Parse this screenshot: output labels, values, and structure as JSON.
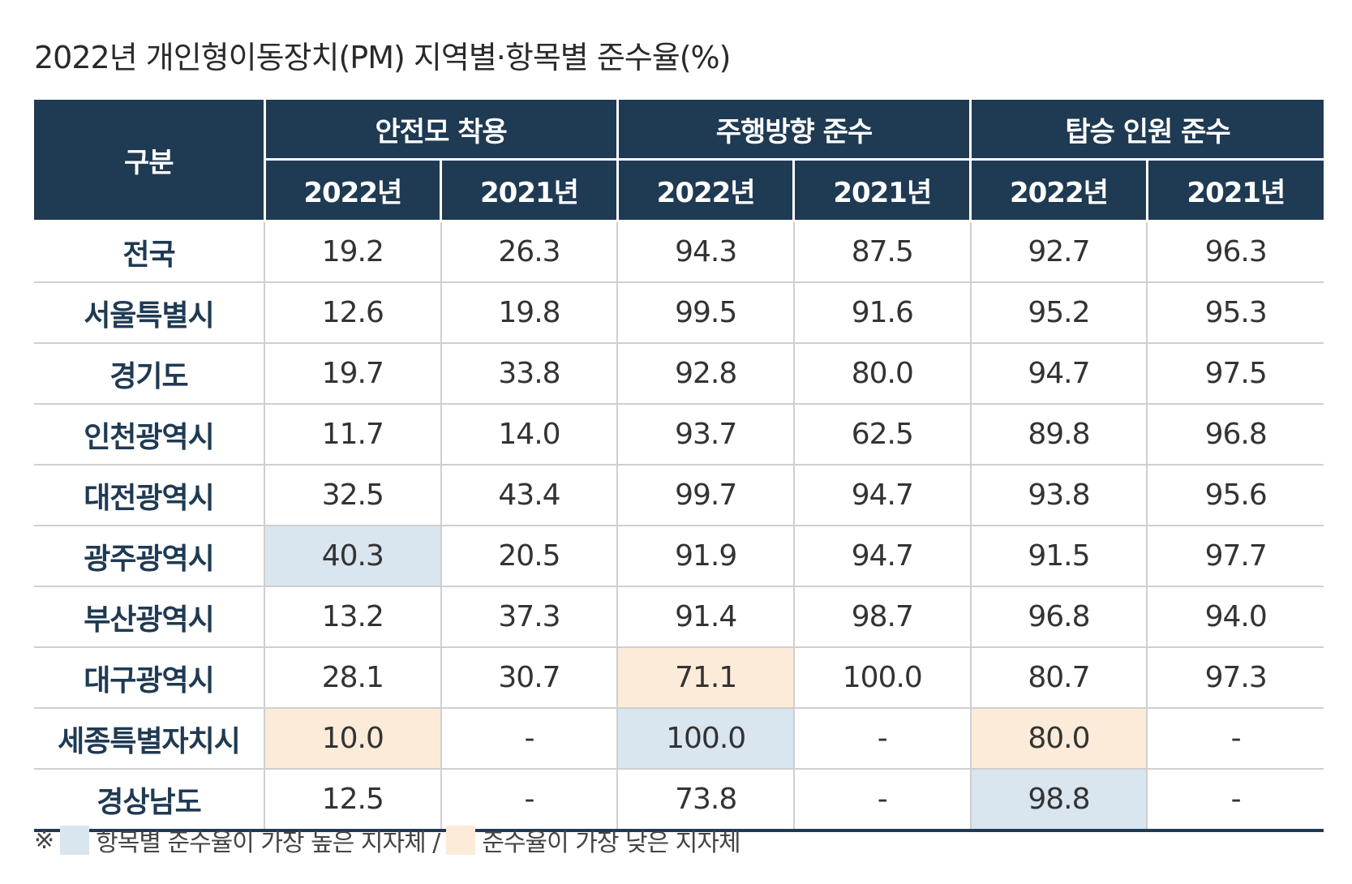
{
  "title": "2022년 개인형이동장치(PM) 지역별·항목별 준수율(%)",
  "header": {
    "category": "구분",
    "groups": [
      "안전모 착용",
      "주행방향 준수",
      "탑승 인원 준수"
    ],
    "years": [
      "2022년",
      "2021년",
      "2022년",
      "2021년",
      "2022년",
      "2021년"
    ]
  },
  "rows": [
    {
      "region": "전국",
      "values": [
        "19.2",
        "26.3",
        "94.3",
        "87.5",
        "92.7",
        "96.3"
      ],
      "marks": [
        "",
        "",
        "",
        "",
        "",
        ""
      ]
    },
    {
      "region": "서울특별시",
      "values": [
        "12.6",
        "19.8",
        "99.5",
        "91.6",
        "95.2",
        "95.3"
      ],
      "marks": [
        "",
        "",
        "",
        "",
        "",
        ""
      ]
    },
    {
      "region": "경기도",
      "values": [
        "19.7",
        "33.8",
        "92.8",
        "80.0",
        "94.7",
        "97.5"
      ],
      "marks": [
        "",
        "",
        "",
        "",
        "",
        ""
      ]
    },
    {
      "region": "인천광역시",
      "values": [
        "11.7",
        "14.0",
        "93.7",
        "62.5",
        "89.8",
        "96.8"
      ],
      "marks": [
        "",
        "",
        "",
        "",
        "",
        ""
      ]
    },
    {
      "region": "대전광역시",
      "values": [
        "32.5",
        "43.4",
        "99.7",
        "94.7",
        "93.8",
        "95.6"
      ],
      "marks": [
        "",
        "",
        "",
        "",
        "",
        ""
      ]
    },
    {
      "region": "광주광역시",
      "values": [
        "40.3",
        "20.5",
        "91.9",
        "94.7",
        "91.5",
        "97.7"
      ],
      "marks": [
        "hi",
        "",
        "",
        "",
        "",
        ""
      ]
    },
    {
      "region": "부산광역시",
      "values": [
        "13.2",
        "37.3",
        "91.4",
        "98.7",
        "96.8",
        "94.0"
      ],
      "marks": [
        "",
        "",
        "",
        "",
        "",
        ""
      ]
    },
    {
      "region": "대구광역시",
      "values": [
        "28.1",
        "30.7",
        "71.1",
        "100.0",
        "80.7",
        "97.3"
      ],
      "marks": [
        "",
        "",
        "lo",
        "",
        "",
        ""
      ]
    },
    {
      "region": "세종특별자치시",
      "values": [
        "10.0",
        "-",
        "100.0",
        "-",
        "80.0",
        "-"
      ],
      "marks": [
        "lo",
        "",
        "hi",
        "",
        "lo",
        ""
      ]
    },
    {
      "region": "경상남도",
      "values": [
        "12.5",
        "-",
        "73.8",
        "-",
        "98.8",
        "-"
      ],
      "marks": [
        "",
        "",
        "",
        "",
        "hi",
        ""
      ]
    }
  ],
  "legend": {
    "prefix": "※",
    "high_label": "항목별 준수율이 가장 높은 지자체 /",
    "low_label": "준수율이 가장 낮은 지자체"
  },
  "colors": {
    "header": "#1f3a53",
    "high": "#d9e5ef",
    "low": "#fdebd9"
  }
}
